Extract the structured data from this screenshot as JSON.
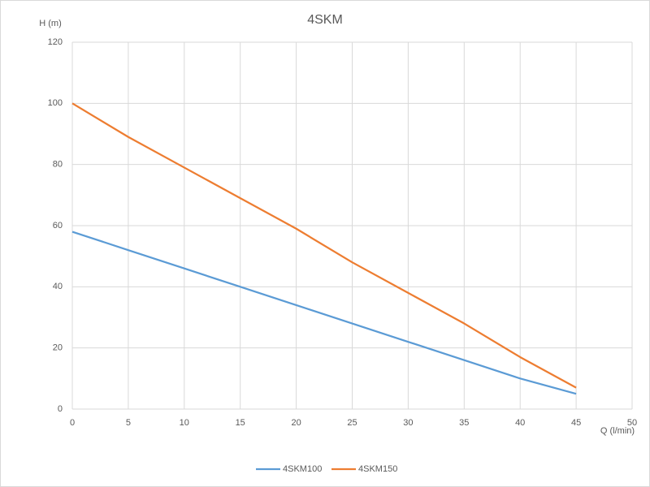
{
  "chart_data": {
    "type": "line",
    "title": "4SKM",
    "y_label": "H (m)",
    "x_label": "Q (l/min)",
    "x": [
      0,
      5,
      10,
      15,
      20,
      25,
      30,
      35,
      40,
      45
    ],
    "series": [
      {
        "name": "4SKM100",
        "color": "#5b9bd5",
        "values": [
          58,
          52,
          46,
          40,
          34,
          28,
          22,
          16,
          10,
          5
        ]
      },
      {
        "name": "4SKM150",
        "color": "#ed7d31",
        "values": [
          100,
          89,
          79,
          69,
          59,
          48,
          38,
          28,
          17,
          7
        ]
      }
    ],
    "xlim": [
      0,
      50
    ],
    "xticks": [
      0,
      5,
      10,
      15,
      20,
      25,
      30,
      35,
      40,
      45,
      50
    ],
    "ylim": [
      0,
      120
    ],
    "yticks": [
      0,
      20,
      40,
      60,
      80,
      100,
      120
    ],
    "grid": true,
    "legend": "bottom"
  }
}
